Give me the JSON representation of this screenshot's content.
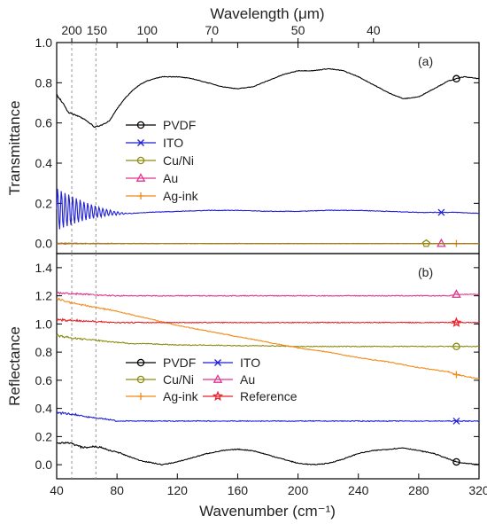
{
  "chart_data": [
    {
      "panel": "(a)",
      "type": "line",
      "xlabel": "Wavenumber (cm⁻¹)",
      "ylabel": "Transmittance",
      "top_axis_label": "Wavelength (μm)",
      "top_ticks": [
        200,
        150,
        100,
        70,
        50,
        40
      ],
      "xlim": [
        40,
        320
      ],
      "ylim": [
        -0.05,
        1.0
      ],
      "yticks": [
        0.0,
        0.2,
        0.4,
        0.6,
        0.8,
        1.0
      ],
      "legend_position": "center-left",
      "series": [
        {
          "name": "PVDF",
          "color": "#000000",
          "marker": "circle",
          "x": [
            40,
            44,
            48,
            52,
            56,
            60,
            65,
            70,
            75,
            80,
            85,
            90,
            95,
            100,
            110,
            120,
            130,
            140,
            150,
            160,
            170,
            180,
            190,
            200,
            210,
            220,
            230,
            240,
            250,
            260,
            270,
            280,
            290,
            300,
            305,
            310,
            320
          ],
          "y": [
            0.74,
            0.7,
            0.65,
            0.64,
            0.63,
            0.61,
            0.58,
            0.59,
            0.61,
            0.67,
            0.72,
            0.76,
            0.79,
            0.81,
            0.83,
            0.83,
            0.82,
            0.8,
            0.78,
            0.77,
            0.78,
            0.81,
            0.84,
            0.86,
            0.86,
            0.87,
            0.86,
            0.83,
            0.79,
            0.75,
            0.72,
            0.73,
            0.77,
            0.81,
            0.82,
            0.83,
            0.82
          ]
        },
        {
          "name": "ITO",
          "color": "#1f1fd6",
          "marker": "x",
          "x": [
            40,
            60,
            80,
            90,
            100,
            120,
            140,
            160,
            180,
            200,
            220,
            240,
            260,
            280,
            300,
            305,
            320
          ],
          "y": [
            0.17,
            0.16,
            0.15,
            0.15,
            0.155,
            0.16,
            0.165,
            0.165,
            0.16,
            0.16,
            0.165,
            0.165,
            0.16,
            0.155,
            0.155,
            0.155,
            0.15
          ],
          "oscillation": {
            "start": 40,
            "end": 95,
            "amp_start": 0.11,
            "period": 2.5
          }
        },
        {
          "name": "Cu/Ni",
          "color": "#8c8c10",
          "marker": "circle",
          "x": [
            40,
            320
          ],
          "y": [
            0.0,
            0.0
          ]
        },
        {
          "name": "Au",
          "color": "#e0338c",
          "marker": "triangle",
          "x": [
            40,
            320
          ],
          "y": [
            0.0,
            0.0
          ]
        },
        {
          "name": "Ag-ink",
          "color": "#f28a18",
          "marker": "plus",
          "x": [
            40,
            320
          ],
          "y": [
            0.0,
            0.0
          ]
        }
      ],
      "legend_markers_x": [
        305,
        295,
        285,
        295,
        305
      ]
    },
    {
      "panel": "(b)",
      "type": "line",
      "xlabel": "Wavenumber (cm⁻¹)",
      "ylabel": "Reflectance",
      "xlim": [
        40,
        320
      ],
      "xticks": [
        40,
        80,
        120,
        160,
        200,
        240,
        280,
        320
      ],
      "ylim": [
        -0.1,
        1.5
      ],
      "yticks": [
        0.0,
        0.2,
        0.4,
        0.6,
        0.8,
        1.0,
        1.2,
        1.4
      ],
      "legend_position": "lower-center",
      "series": [
        {
          "name": "PVDF",
          "color": "#000000",
          "marker": "circle",
          "x": [
            40,
            45,
            50,
            55,
            60,
            65,
            70,
            75,
            80,
            85,
            90,
            95,
            100,
            110,
            120,
            130,
            140,
            150,
            160,
            170,
            180,
            190,
            200,
            210,
            220,
            230,
            240,
            250,
            260,
            270,
            280,
            290,
            300,
            305,
            310,
            320
          ],
          "y": [
            0.15,
            0.16,
            0.15,
            0.13,
            0.12,
            0.13,
            0.12,
            0.1,
            0.09,
            0.07,
            0.05,
            0.03,
            0.02,
            0.0,
            0.02,
            0.05,
            0.08,
            0.1,
            0.11,
            0.1,
            0.07,
            0.04,
            0.01,
            0.0,
            0.01,
            0.04,
            0.08,
            0.1,
            0.11,
            0.12,
            0.1,
            0.08,
            0.04,
            0.02,
            0.01,
            0.0
          ]
        },
        {
          "name": "ITO",
          "color": "#1f1fd6",
          "marker": "x",
          "x": [
            40,
            50,
            60,
            70,
            80,
            90,
            100,
            120,
            140,
            160,
            180,
            200,
            220,
            240,
            260,
            280,
            300,
            305,
            320
          ],
          "y": [
            0.37,
            0.36,
            0.34,
            0.33,
            0.31,
            0.31,
            0.31,
            0.31,
            0.31,
            0.31,
            0.31,
            0.31,
            0.31,
            0.31,
            0.31,
            0.31,
            0.31,
            0.31,
            0.31
          ]
        },
        {
          "name": "Cu/Ni",
          "color": "#8c8c10",
          "marker": "circle",
          "x": [
            40,
            50,
            60,
            70,
            80,
            90,
            100,
            120,
            140,
            160,
            180,
            200,
            220,
            240,
            260,
            280,
            300,
            305,
            320
          ],
          "y": [
            0.92,
            0.9,
            0.89,
            0.88,
            0.87,
            0.86,
            0.86,
            0.85,
            0.85,
            0.845,
            0.845,
            0.84,
            0.84,
            0.84,
            0.84,
            0.84,
            0.84,
            0.84,
            0.84
          ]
        },
        {
          "name": "Au",
          "color": "#e0338c",
          "marker": "triangle",
          "x": [
            40,
            60,
            80,
            100,
            120,
            140,
            160,
            180,
            200,
            220,
            240,
            260,
            280,
            300,
            305,
            320
          ],
          "y": [
            1.22,
            1.21,
            1.2,
            1.2,
            1.2,
            1.2,
            1.2,
            1.2,
            1.2,
            1.2,
            1.2,
            1.2,
            1.2,
            1.2,
            1.21,
            1.21
          ]
        },
        {
          "name": "Ag-ink",
          "color": "#f28a18",
          "marker": "plus",
          "x": [
            40,
            50,
            60,
            70,
            80,
            100,
            120,
            140,
            160,
            180,
            200,
            220,
            240,
            260,
            280,
            300,
            305,
            320
          ],
          "y": [
            1.18,
            1.15,
            1.13,
            1.11,
            1.09,
            1.04,
            0.99,
            0.95,
            0.91,
            0.87,
            0.83,
            0.8,
            0.76,
            0.73,
            0.69,
            0.66,
            0.64,
            0.61
          ]
        },
        {
          "name": "Reference",
          "color": "#e8202a",
          "marker": "star",
          "x": [
            40,
            60,
            80,
            100,
            120,
            140,
            160,
            180,
            200,
            220,
            240,
            260,
            280,
            300,
            305,
            320
          ],
          "y": [
            1.03,
            1.02,
            1.01,
            1.01,
            1.01,
            1.01,
            1.01,
            1.01,
            1.01,
            1.01,
            1.01,
            1.01,
            1.01,
            1.01,
            1.01,
            1.01
          ]
        }
      ],
      "legend_markers_x": [
        305,
        305,
        305,
        305,
        305,
        305
      ]
    }
  ],
  "reference_lines_x": [
    50,
    66
  ]
}
